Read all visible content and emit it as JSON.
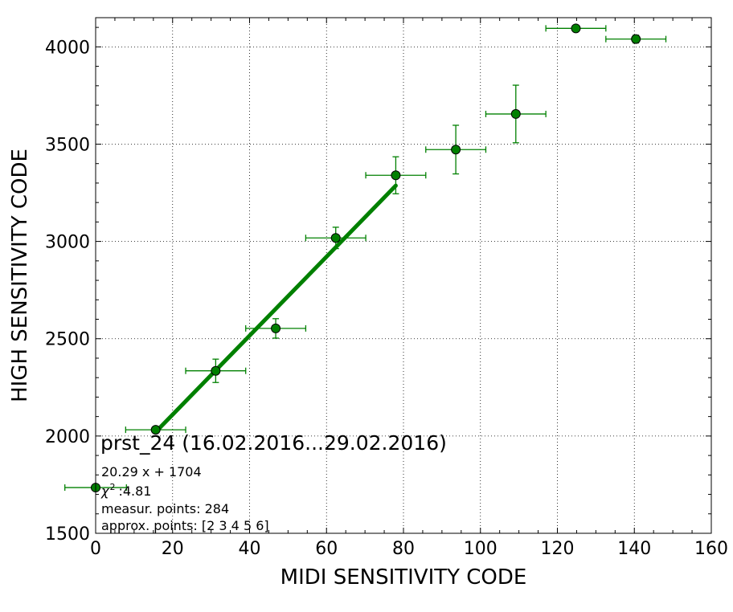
{
  "chart_data": {
    "type": "scatter",
    "xlabel": "MIDI SENSITIVITY CODE",
    "ylabel": "HIGH SENSITIVITY CODE",
    "xlim": [
      0,
      160
    ],
    "ylim": [
      1500,
      4150
    ],
    "x_ticks": [
      0,
      20,
      40,
      60,
      80,
      100,
      120,
      140,
      160
    ],
    "y_ticks": [
      1500,
      2000,
      2500,
      3000,
      3500,
      4000
    ],
    "x_tick_labels": [
      "0",
      "20",
      "40",
      "60",
      "80",
      "100",
      "120",
      "140",
      "160"
    ],
    "y_tick_labels": [
      "1500",
      "2000",
      "2500",
      "3000",
      "3500",
      "4000"
    ],
    "grid": true,
    "series": [
      {
        "kind": "points_with_errorbars",
        "color": "#008000",
        "points": [
          {
            "x": 0,
            "y": 1735,
            "xerr": 8,
            "yerr": 0
          },
          {
            "x": 15.6,
            "y": 2032,
            "xerr": 7.8,
            "yerr": 10
          },
          {
            "x": 31.2,
            "y": 2335,
            "xerr": 7.8,
            "yerr": 60
          },
          {
            "x": 46.8,
            "y": 2553,
            "xerr": 7.8,
            "yerr": 50
          },
          {
            "x": 62.4,
            "y": 3018,
            "xerr": 7.8,
            "yerr": 55
          },
          {
            "x": 78.0,
            "y": 3340,
            "xerr": 7.8,
            "yerr": 95
          },
          {
            "x": 93.6,
            "y": 3472,
            "xerr": 7.8,
            "yerr": 125
          },
          {
            "x": 109.2,
            "y": 3655,
            "xerr": 7.8,
            "yerr": 148
          },
          {
            "x": 124.8,
            "y": 4095,
            "xerr": 7.8,
            "yerr": 0
          },
          {
            "x": 140.4,
            "y": 4040,
            "xerr": 7.8,
            "yerr": 20
          }
        ]
      },
      {
        "kind": "fit_line",
        "color": "#008000",
        "slope": 20.29,
        "intercept": 1704,
        "x_range": [
          15.6,
          78.0
        ]
      }
    ],
    "annotations": {
      "title": "prst_24 (16.02.2016...29.02.2016)",
      "equation": "20.29 x + 1704",
      "chi_symbol": "χ",
      "chi_sup": "2",
      "chi_value": ":4.81",
      "measur_points": "measur. points: 284",
      "approx_points": "approx. points: [2 3 4 5 6]"
    }
  }
}
